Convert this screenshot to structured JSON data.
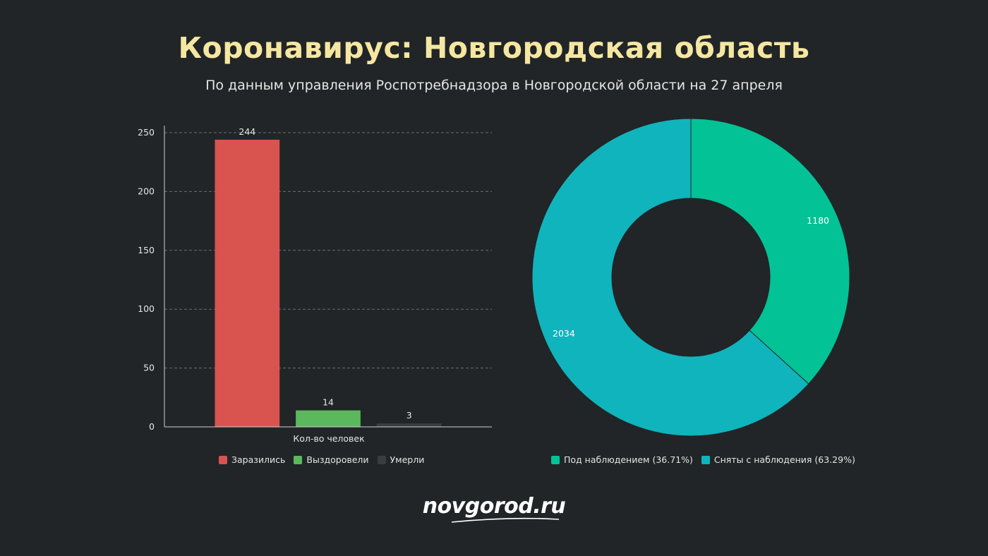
{
  "title": "Коронавирус: Новгородская область",
  "subtitle": "По данным управления Роспотребнадзора в Новгородской области на 27 апреля",
  "brand": "novgorod.ru",
  "chart_data": [
    {
      "type": "bar",
      "categories": [
        "Кол-во человек"
      ],
      "xlabel": "Кол-во человек",
      "ylim": [
        0,
        250
      ],
      "yticks": [
        0,
        50,
        100,
        150,
        200,
        250
      ],
      "grid": true,
      "legend": "bottom",
      "series": [
        {
          "name": "Заразились",
          "values": [
            244
          ],
          "color": "#d9534f"
        },
        {
          "name": "Выздоровели",
          "values": [
            14
          ],
          "color": "#5cb85c"
        },
        {
          "name": "Умерли",
          "values": [
            3
          ],
          "color": "#3a3d40"
        }
      ]
    },
    {
      "type": "pie",
      "donut": true,
      "legend": "bottom",
      "slices": [
        {
          "name": "Под наблюдением (36.71%)",
          "value": 1180,
          "percent": 36.71,
          "color": "#03c296"
        },
        {
          "name": "Сняты с наблюдения (63.29%)",
          "value": 2034,
          "percent": 63.29,
          "color": "#10b4bd"
        }
      ]
    }
  ]
}
